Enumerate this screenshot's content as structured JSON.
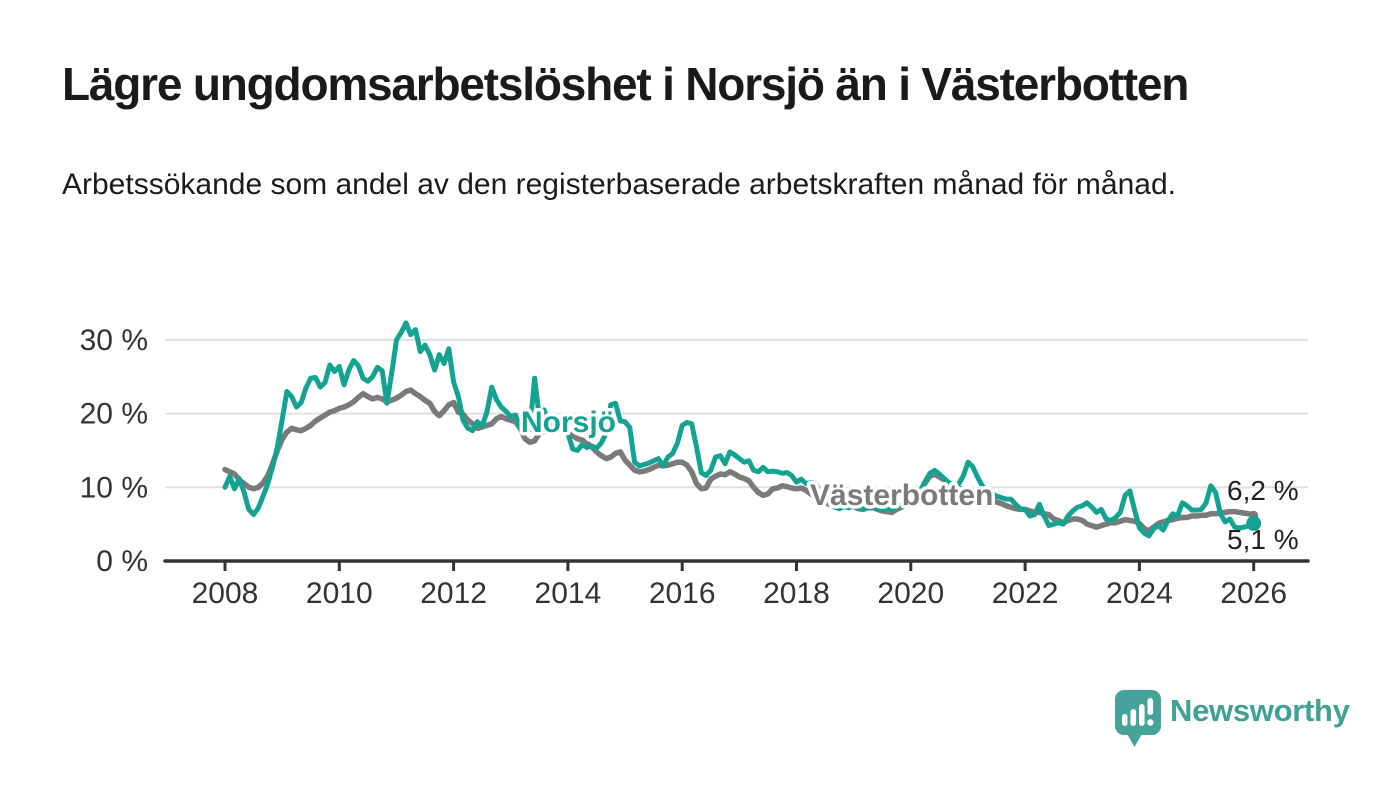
{
  "header": {
    "title": "Lägre ungdomsarbetslöshet i Norsjö än i Västerbotten",
    "subtitle": "Arbetssökande som andel av den registerbaserade arbetskraften månad för månad."
  },
  "chart_data": {
    "type": "line",
    "frequency": "monthly",
    "x_start": "2008-01",
    "x_end": "2026-01",
    "x_ticks": [
      2008,
      2010,
      2012,
      2014,
      2016,
      2018,
      2020,
      2022,
      2024,
      2026
    ],
    "y_tick_labels": [
      "0 %",
      "10 %",
      "20 %",
      "30 %"
    ],
    "y_tick_values": [
      0,
      10,
      20,
      30
    ],
    "ylim": [
      0,
      33
    ],
    "unit": "%",
    "grid": "horizontal",
    "legend_position": "inline-labels",
    "series": [
      {
        "name": "Västerbotten",
        "color": "#7a7a7a",
        "line_width": 5.5,
        "end_label": "6,2 %",
        "end_value": 6.2,
        "values": [
          12.4,
          12.1,
          11.8,
          11.0,
          10.5,
          10.0,
          9.8,
          10.0,
          10.6,
          11.6,
          13.2,
          15.0,
          16.5,
          17.5,
          18.0,
          17.8,
          17.7,
          18.0,
          18.4,
          19.0,
          19.4,
          19.8,
          20.2,
          20.4,
          20.7,
          20.9,
          21.2,
          21.6,
          22.2,
          22.7,
          22.3,
          22.0,
          22.2,
          22.0,
          21.6,
          21.8,
          22.1,
          22.5,
          23.0,
          23.2,
          22.7,
          22.3,
          21.8,
          21.4,
          20.3,
          19.7,
          20.4,
          21.2,
          21.5,
          20.2,
          19.9,
          19.1,
          18.6,
          18.0,
          18.2,
          18.4,
          18.6,
          19.3,
          19.6,
          19.3,
          19.1,
          18.9,
          18.0,
          16.6,
          16.1,
          16.3,
          17.3,
          17.6,
          18.0,
          17.9,
          17.8,
          17.7,
          17.3,
          17.0,
          16.6,
          16.4,
          16.0,
          15.5,
          14.8,
          14.3,
          13.9,
          14.1,
          14.6,
          14.8,
          13.7,
          13.0,
          12.3,
          12.1,
          12.2,
          12.4,
          12.7,
          13.0,
          12.9,
          13.0,
          13.2,
          13.4,
          13.4,
          13.0,
          12.1,
          10.5,
          9.8,
          9.9,
          11.1,
          11.5,
          11.8,
          11.7,
          12.1,
          11.8,
          11.4,
          11.2,
          10.9,
          10.0,
          9.3,
          8.9,
          9.1,
          9.8,
          9.9,
          10.2,
          10.1,
          9.9,
          9.8,
          9.9,
          9.6,
          9.1,
          8.6,
          8.2,
          7.9,
          7.7,
          7.6,
          7.7,
          7.8,
          7.6,
          7.4,
          7.1,
          7.0,
          7.2,
          7.3,
          7.0,
          6.8,
          6.7,
          6.6,
          7.0,
          7.3,
          7.6,
          7.9,
          8.3,
          9.2,
          10.6,
          11.5,
          11.8,
          11.4,
          11.0,
          10.6,
          10.2,
          9.9,
          9.7,
          9.6,
          9.4,
          9.2,
          8.9,
          8.6,
          8.3,
          8.0,
          7.8,
          7.5,
          7.3,
          7.1,
          7.0,
          7.0,
          6.8,
          6.6,
          6.6,
          6.4,
          6.3,
          5.7,
          5.5,
          5.2,
          5.5,
          5.7,
          5.7,
          5.5,
          5.0,
          4.8,
          4.6,
          4.8,
          5.0,
          5.2,
          5.2,
          5.4,
          5.6,
          5.5,
          5.4,
          5.1,
          4.4,
          4.1,
          4.6,
          5.1,
          5.3,
          5.5,
          5.6,
          5.8,
          5.9,
          5.9,
          6.1,
          6.1,
          6.2,
          6.2,
          6.4,
          6.4,
          6.5,
          6.6,
          6.7,
          6.7,
          6.6,
          6.5,
          6.4,
          6.2
        ]
      },
      {
        "name": "Norsjö",
        "color": "#14a392",
        "line_width": 5,
        "end_label": "5,1 %",
        "end_value": 5.1,
        "values": [
          10.0,
          11.5,
          9.8,
          11.2,
          9.3,
          7.0,
          6.3,
          7.2,
          8.8,
          10.5,
          12.8,
          15.5,
          19.1,
          23.0,
          22.3,
          20.9,
          21.5,
          23.5,
          24.8,
          24.9,
          23.6,
          24.2,
          26.6,
          25.7,
          26.4,
          23.9,
          25.9,
          27.2,
          26.5,
          24.8,
          24.4,
          25.0,
          26.3,
          25.8,
          21.4,
          25.5,
          30.0,
          31.0,
          32.3,
          30.7,
          31.4,
          28.4,
          29.3,
          28.0,
          25.9,
          28.0,
          26.8,
          28.8,
          24.3,
          22.3,
          19.1,
          18.0,
          17.7,
          18.9,
          18.3,
          20.2,
          23.6,
          21.9,
          20.9,
          20.3,
          19.6,
          19.8,
          18.0,
          17.6,
          17.8,
          24.8,
          19.5,
          20.5,
          18.6,
          19.0,
          18.4,
          17.8,
          17.3,
          15.2,
          15.0,
          15.8,
          15.4,
          15.6,
          15.3,
          16.0,
          17.3,
          21.2,
          21.4,
          19.0,
          18.9,
          18.1,
          13.4,
          12.9,
          13.1,
          13.3,
          13.6,
          13.9,
          12.9,
          14.1,
          14.6,
          16.0,
          18.4,
          18.8,
          18.6,
          15.5,
          12.0,
          11.6,
          12.3,
          14.1,
          14.3,
          13.2,
          14.8,
          14.4,
          13.9,
          13.4,
          13.6,
          12.3,
          12.1,
          12.7,
          12.1,
          12.2,
          12.1,
          11.9,
          12.0,
          11.6,
          10.7,
          11.1,
          10.5,
          10.6,
          10.5,
          9.2,
          8.4,
          7.9,
          7.3,
          7.1,
          7.4,
          7.2,
          7.6,
          7.2,
          7.0,
          7.3,
          7.5,
          7.1,
          6.9,
          7.2,
          7.0,
          7.4,
          7.6,
          7.9,
          8.2,
          8.6,
          9.5,
          10.8,
          11.9,
          12.3,
          11.8,
          11.2,
          10.6,
          10.2,
          10.4,
          11.5,
          13.4,
          12.8,
          11.4,
          10.2,
          9.6,
          9.2,
          8.8,
          8.6,
          8.4,
          8.4,
          7.7,
          7.1,
          7.0,
          6.1,
          6.3,
          7.7,
          6.1,
          4.8,
          5.0,
          5.2,
          5.0,
          6.1,
          6.8,
          7.3,
          7.5,
          7.9,
          7.3,
          6.6,
          7.0,
          5.7,
          5.5,
          5.9,
          6.6,
          8.9,
          9.5,
          6.9,
          4.5,
          3.8,
          3.4,
          4.4,
          4.8,
          4.2,
          5.5,
          6.4,
          6.1,
          7.9,
          7.5,
          6.9,
          6.9,
          7.0,
          7.9,
          10.2,
          9.3,
          6.4,
          5.3,
          5.7,
          4.6,
          4.5,
          4.6,
          4.8,
          5.1
        ]
      }
    ]
  },
  "annotations": {
    "norsjo_label": "Norsjö",
    "vasterbotten_label": "Västerbotten",
    "norsjo_end_value": "5,1 %",
    "vasterbotten_end_value": "6,2 %"
  },
  "footer": {
    "logo_text": "Newsworthy"
  },
  "colors": {
    "norsjo_line": "#14a392",
    "vasterbotten_line": "#7a7a7a",
    "logo_teal": "#44a29a",
    "logo_text_teal": "#3fa096",
    "axis": "#333333",
    "gridline": "#e0e0e0",
    "text": "#1a1a1a"
  }
}
